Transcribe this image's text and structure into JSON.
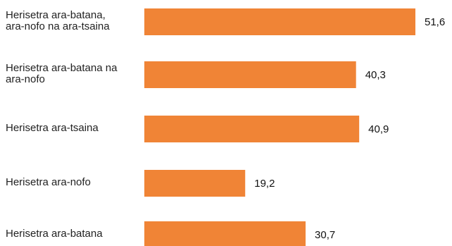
{
  "chart_data": {
    "type": "bar",
    "orientation": "horizontal",
    "categories": [
      "Herisetra ara-batana, ara-nofo na ara-tsaina",
      "Herisetra ara-batana na ara-nofo",
      "Herisetra ara-tsaina",
      "Herisetra ara-nofo",
      "Herisetra ara-batana"
    ],
    "category_lines": [
      [
        "Herisetra ara-batana,",
        "ara-nofo na ara-tsaina"
      ],
      [
        "Herisetra ara-batana na",
        "ara-nofo"
      ],
      [
        "Herisetra ara-tsaina"
      ],
      [
        "Herisetra ara-nofo"
      ],
      [
        "Herisetra ara-batana"
      ]
    ],
    "values": [
      51.6,
      40.3,
      40.9,
      19.2,
      30.7
    ],
    "value_labels": [
      "51,6",
      "40,3",
      "40,9",
      "19,2",
      "30,7"
    ],
    "title": "",
    "xlabel": "",
    "ylabel": "",
    "xlim": [
      0,
      51.6
    ],
    "grid": false,
    "legend": "none",
    "bar_color": "#f08436"
  }
}
